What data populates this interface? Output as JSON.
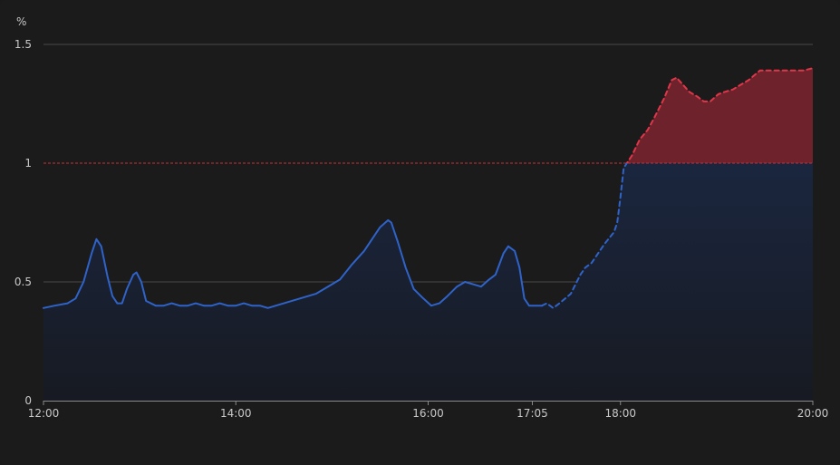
{
  "chart_data": {
    "type": "area",
    "y_unit": "%",
    "xlim": [
      720,
      1200
    ],
    "ylim": [
      0,
      1.5
    ],
    "y_ticks": [
      {
        "v": 0,
        "label": "0"
      },
      {
        "v": 0.5,
        "label": "0.5"
      },
      {
        "v": 1,
        "label": "1"
      },
      {
        "v": 1.5,
        "label": "1.5"
      }
    ],
    "x_ticks": [
      {
        "v": 720,
        "label": "12:00"
      },
      {
        "v": 840,
        "label": "14:00"
      },
      {
        "v": 960,
        "label": "16:00"
      },
      {
        "v": 1025,
        "label": "17:05"
      },
      {
        "v": 1080,
        "label": "18:00"
      },
      {
        "v": 1200,
        "label": "20:00"
      }
    ],
    "threshold": 1,
    "grid": true,
    "colors": {
      "line": "#2f63c9",
      "area_top": "#1c2b4a",
      "area_bottom": "#171a22",
      "excess_fill": "#6e222b",
      "excess_line": "#e0364a",
      "threshold_line": "#c8303a",
      "grid": "#4a4a4a",
      "axis": "#8a8a8a"
    },
    "series": [
      {
        "style": "solid",
        "points": [
          [
            720,
            0.39
          ],
          [
            727,
            0.4
          ],
          [
            735,
            0.41
          ],
          [
            740,
            0.43
          ],
          [
            745,
            0.5
          ],
          [
            750,
            0.62
          ],
          [
            753,
            0.68
          ],
          [
            756,
            0.65
          ],
          [
            760,
            0.52
          ],
          [
            763,
            0.44
          ],
          [
            766,
            0.41
          ],
          [
            769,
            0.41
          ],
          [
            772,
            0.47
          ],
          [
            776,
            0.53
          ],
          [
            778,
            0.54
          ],
          [
            781,
            0.5
          ],
          [
            784,
            0.42
          ],
          [
            790,
            0.4
          ],
          [
            795,
            0.4
          ],
          [
            800,
            0.41
          ],
          [
            805,
            0.4
          ],
          [
            810,
            0.4
          ],
          [
            815,
            0.41
          ],
          [
            820,
            0.4
          ],
          [
            825,
            0.4
          ],
          [
            830,
            0.41
          ],
          [
            835,
            0.4
          ],
          [
            840,
            0.4
          ],
          [
            845,
            0.41
          ],
          [
            850,
            0.4
          ],
          [
            855,
            0.4
          ],
          [
            860,
            0.39
          ],
          [
            870,
            0.41
          ],
          [
            880,
            0.43
          ],
          [
            890,
            0.45
          ],
          [
            905,
            0.51
          ],
          [
            912,
            0.57
          ],
          [
            920,
            0.63
          ],
          [
            930,
            0.73
          ],
          [
            935,
            0.76
          ],
          [
            937,
            0.75
          ],
          [
            941,
            0.67
          ],
          [
            946,
            0.56
          ],
          [
            951,
            0.47
          ],
          [
            957,
            0.43
          ],
          [
            962,
            0.4
          ],
          [
            967,
            0.41
          ],
          [
            972,
            0.44
          ],
          [
            978,
            0.48
          ],
          [
            983,
            0.5
          ],
          [
            988,
            0.49
          ],
          [
            993,
            0.48
          ],
          [
            998,
            0.51
          ],
          [
            1002,
            0.53
          ],
          [
            1007,
            0.62
          ],
          [
            1010,
            0.65
          ],
          [
            1014,
            0.63
          ],
          [
            1017,
            0.56
          ],
          [
            1020,
            0.43
          ],
          [
            1023,
            0.4
          ],
          [
            1028,
            0.4
          ],
          [
            1031,
            0.4
          ]
        ]
      },
      {
        "style": "dashed",
        "points": [
          [
            1031,
            0.4
          ],
          [
            1034,
            0.41
          ],
          [
            1038,
            0.39
          ],
          [
            1042,
            0.41
          ],
          [
            1049,
            0.45
          ],
          [
            1055,
            0.53
          ],
          [
            1058,
            0.56
          ],
          [
            1062,
            0.58
          ],
          [
            1066,
            0.62
          ],
          [
            1070,
            0.66
          ],
          [
            1076,
            0.71
          ],
          [
            1078,
            0.75
          ],
          [
            1080,
            0.86
          ],
          [
            1082,
            0.98
          ],
          [
            1084,
            1.0
          ],
          [
            1087,
            1.03
          ],
          [
            1092,
            1.1
          ],
          [
            1097,
            1.14
          ],
          [
            1101,
            1.19
          ],
          [
            1107,
            1.27
          ],
          [
            1112,
            1.35
          ],
          [
            1115,
            1.36
          ],
          [
            1119,
            1.33
          ],
          [
            1123,
            1.3
          ],
          [
            1128,
            1.28
          ],
          [
            1132,
            1.26
          ],
          [
            1136,
            1.26
          ],
          [
            1141,
            1.29
          ],
          [
            1145,
            1.3
          ],
          [
            1150,
            1.31
          ],
          [
            1155,
            1.33
          ],
          [
            1160,
            1.35
          ],
          [
            1167,
            1.39
          ],
          [
            1174,
            1.39
          ],
          [
            1180,
            1.39
          ],
          [
            1186,
            1.39
          ],
          [
            1191,
            1.39
          ],
          [
            1194,
            1.39
          ],
          [
            1200,
            1.4
          ]
        ]
      }
    ]
  }
}
